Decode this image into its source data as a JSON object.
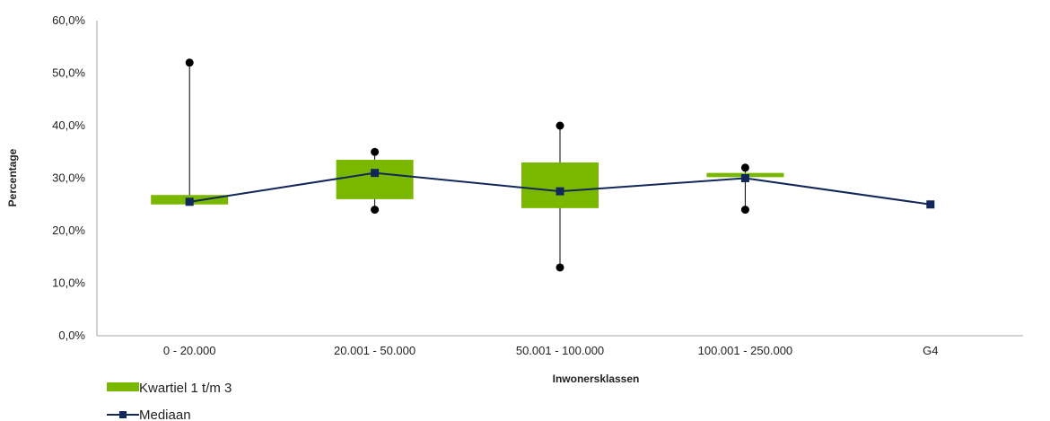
{
  "chart_data": {
    "type": "box",
    "xlabel": "Inwonersklassen",
    "ylabel": "Percentage",
    "categories": [
      "0 - 20.000",
      "20.001 - 50.000",
      "50.001 - 100.000",
      "100.001 - 250.000",
      "G4"
    ],
    "y_ticks": [
      "0,0%",
      "10,0%",
      "20,0%",
      "30,0%",
      "40,0%",
      "50,0%",
      "60,0%"
    ],
    "ylim": [
      0,
      60
    ],
    "grid": false,
    "legend_position": "bottom-left",
    "series": [
      {
        "name": "Kwartiel 1 t/m 3",
        "kind": "box",
        "color": "#7ab800",
        "q1": [
          25.0,
          26.0,
          24.3,
          30.2,
          null
        ],
        "q3": [
          26.8,
          33.5,
          33.0,
          31.0,
          null
        ]
      },
      {
        "name": "Mediaan",
        "kind": "line",
        "color": "#12275a",
        "values": [
          25.5,
          31.0,
          27.5,
          30.0,
          25.0
        ]
      },
      {
        "kind": "whiskers",
        "color": "#000000",
        "min": [
          25.0,
          24.0,
          13.0,
          24.0,
          null
        ],
        "max": [
          52.0,
          35.0,
          40.0,
          32.0,
          null
        ]
      }
    ]
  }
}
